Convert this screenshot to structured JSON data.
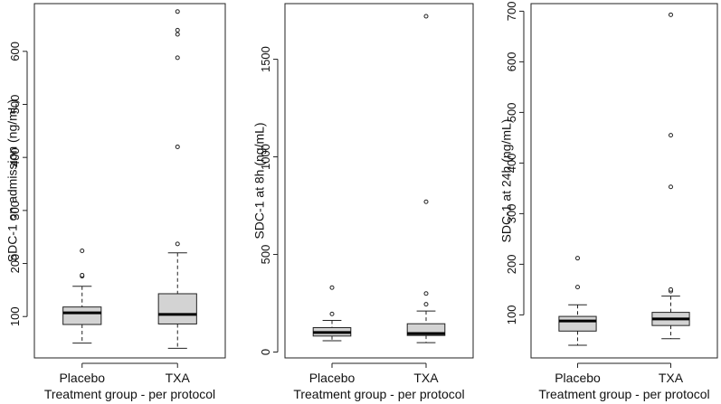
{
  "chart_data": [
    {
      "type": "box",
      "ylabel": "SDC-1 on admission (ng/mL)",
      "xlabel": "Treatment group - per protocol",
      "ylim": [
        22,
        690
      ],
      "yticks": [
        100,
        200,
        300,
        400,
        500,
        600
      ],
      "categories": [
        "Placebo",
        "TXA"
      ],
      "boxes": [
        {
          "name": "Placebo",
          "whisker_low": 50,
          "q1": 85,
          "median": 107,
          "q3": 118,
          "whisker_high": 157,
          "outliers": [
            176,
            178,
            224
          ]
        },
        {
          "name": "TXA",
          "whisker_low": 40,
          "q1": 86,
          "median": 104,
          "q3": 143,
          "whisker_high": 220,
          "outliers": [
            237,
            420,
            588,
            632,
            640,
            675
          ]
        }
      ]
    },
    {
      "type": "box",
      "ylabel": "SDC-1 at 8h (ng/mL)",
      "xlabel": "Treatment group - per protocol",
      "ylim": [
        -30,
        1785
      ],
      "yticks": [
        0,
        500,
        1000,
        1500
      ],
      "categories": [
        "Placebo",
        "TXA"
      ],
      "boxes": [
        {
          "name": "Placebo",
          "whisker_low": 58,
          "q1": 82,
          "median": 100,
          "q3": 125,
          "whisker_high": 162,
          "outliers": [
            195,
            330
          ]
        },
        {
          "name": "TXA",
          "whisker_low": 48,
          "q1": 85,
          "median": 95,
          "q3": 145,
          "whisker_high": 210,
          "outliers": [
            245,
            300,
            770,
            1720
          ]
        }
      ]
    },
    {
      "type": "box",
      "ylabel": "SDC-1 at 24h (ng/mL)",
      "xlabel": "Treatment group - per protocol",
      "ylim": [
        15,
        715
      ],
      "yticks": [
        100,
        200,
        300,
        400,
        500,
        600,
        700
      ],
      "categories": [
        "Placebo",
        "TXA"
      ],
      "boxes": [
        {
          "name": "Placebo",
          "whisker_low": 40,
          "q1": 68,
          "median": 88,
          "q3": 97,
          "whisker_high": 120,
          "outliers": [
            155,
            212
          ]
        },
        {
          "name": "TXA",
          "whisker_low": 53,
          "q1": 79,
          "median": 92,
          "q3": 105,
          "whisker_high": 137,
          "outliers": [
            147,
            150,
            353,
            455,
            693
          ]
        }
      ]
    }
  ]
}
